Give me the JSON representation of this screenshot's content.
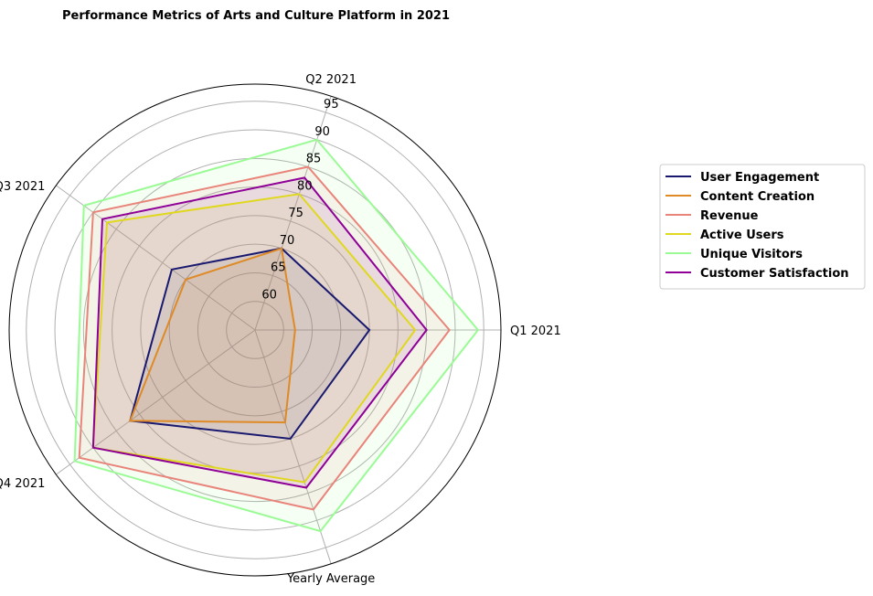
{
  "chart_data": {
    "type": "radar",
    "title": "Performance Metrics of Arts and Culture Platform in 2021",
    "categories": [
      "Q1 2021",
      "Q2 2021",
      "Q3 2021",
      "Q4 2021",
      "Yearly Average"
    ],
    "rlim": [
      55,
      98
    ],
    "rticks": [
      60,
      65,
      70,
      75,
      80,
      85,
      90,
      95
    ],
    "grid": true,
    "legend_position": "right",
    "series": [
      {
        "name": "User Engagement",
        "values": [
          75,
          70,
          73,
          82,
          75
        ],
        "color": "#191970"
      },
      {
        "name": "Content Creation",
        "values": [
          62,
          70,
          70,
          82,
          72
        ],
        "color": "#DE8A26"
      },
      {
        "name": "Revenue",
        "values": [
          89,
          85,
          90,
          93,
          88
        ],
        "color": "#E9847B"
      },
      {
        "name": "Active Users",
        "values": [
          83,
          80,
          87,
          90,
          83
        ],
        "color": "#E0D81E"
      },
      {
        "name": "Unique Visitors",
        "values": [
          94,
          90,
          92,
          94,
          92
        ],
        "color": "#9AFB95"
      },
      {
        "name": "Customer Satisfaction",
        "values": [
          85,
          83,
          88,
          90,
          84
        ],
        "color": "#8E0096"
      }
    ]
  }
}
